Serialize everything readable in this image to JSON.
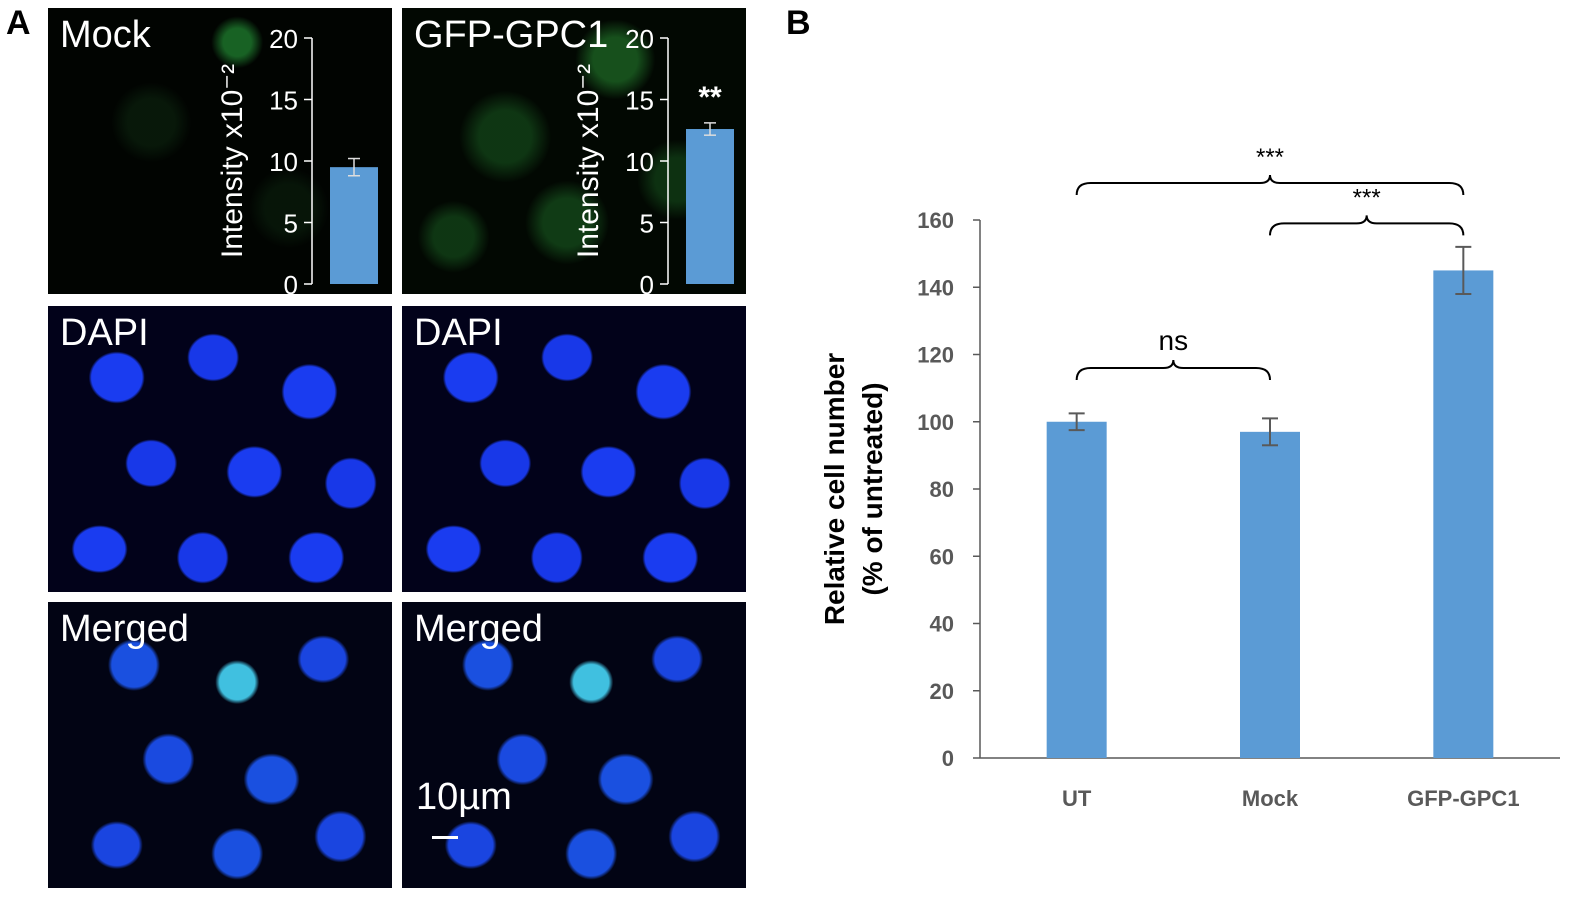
{
  "panel_a": {
    "letter": "A",
    "tiles": [
      {
        "id": "mock-gfp",
        "label": "Mock"
      },
      {
        "id": "gpc1-gfp",
        "label": "GFP-GPC1"
      },
      {
        "id": "mock-dapi",
        "label": "DAPI"
      },
      {
        "id": "gpc1-dapi",
        "label": "DAPI"
      },
      {
        "id": "mock-merged",
        "label": "Merged"
      },
      {
        "id": "gpc1-merged",
        "label": "Merged"
      }
    ],
    "scale_bar_label": "10µm"
  },
  "panel_b": {
    "letter": "B"
  },
  "colors": {
    "bar": "#5b9bd5",
    "axis": "#595959",
    "inset_bar": "#5b9bd5"
  },
  "chart_data": [
    {
      "id": "inset-mock",
      "type": "bar",
      "ylabel": "Intensity x10⁻²",
      "ylim": [
        0,
        20
      ],
      "yticks": [
        0,
        5,
        10,
        15,
        20
      ],
      "categories": [
        ""
      ],
      "values": [
        9.5
      ],
      "errors": [
        0.7
      ],
      "annotations": []
    },
    {
      "id": "inset-gpc1",
      "type": "bar",
      "ylabel": "Intensity x10⁻²",
      "ylim": [
        0,
        20
      ],
      "yticks": [
        0,
        5,
        10,
        15,
        20
      ],
      "categories": [
        ""
      ],
      "values": [
        12.6
      ],
      "errors": [
        0.5
      ],
      "annotations": [
        "**"
      ]
    },
    {
      "id": "main",
      "type": "bar",
      "xlabel": "",
      "ylabel": "Relative cell number",
      "ylabel2": "(% of untreated)",
      "ylim": [
        0,
        160
      ],
      "yticks": [
        0,
        20,
        40,
        60,
        80,
        100,
        120,
        140,
        160
      ],
      "categories": [
        "UT",
        "Mock",
        "GFP-GPC1"
      ],
      "values": [
        100,
        97,
        145
      ],
      "errors": [
        2.5,
        4,
        7
      ],
      "grid": false,
      "significance": [
        {
          "from": 1,
          "to": 2,
          "label": "ns"
        },
        {
          "from": 2,
          "to": 3,
          "label": "***"
        },
        {
          "from": 1,
          "to": 3,
          "label": "***"
        }
      ]
    }
  ]
}
